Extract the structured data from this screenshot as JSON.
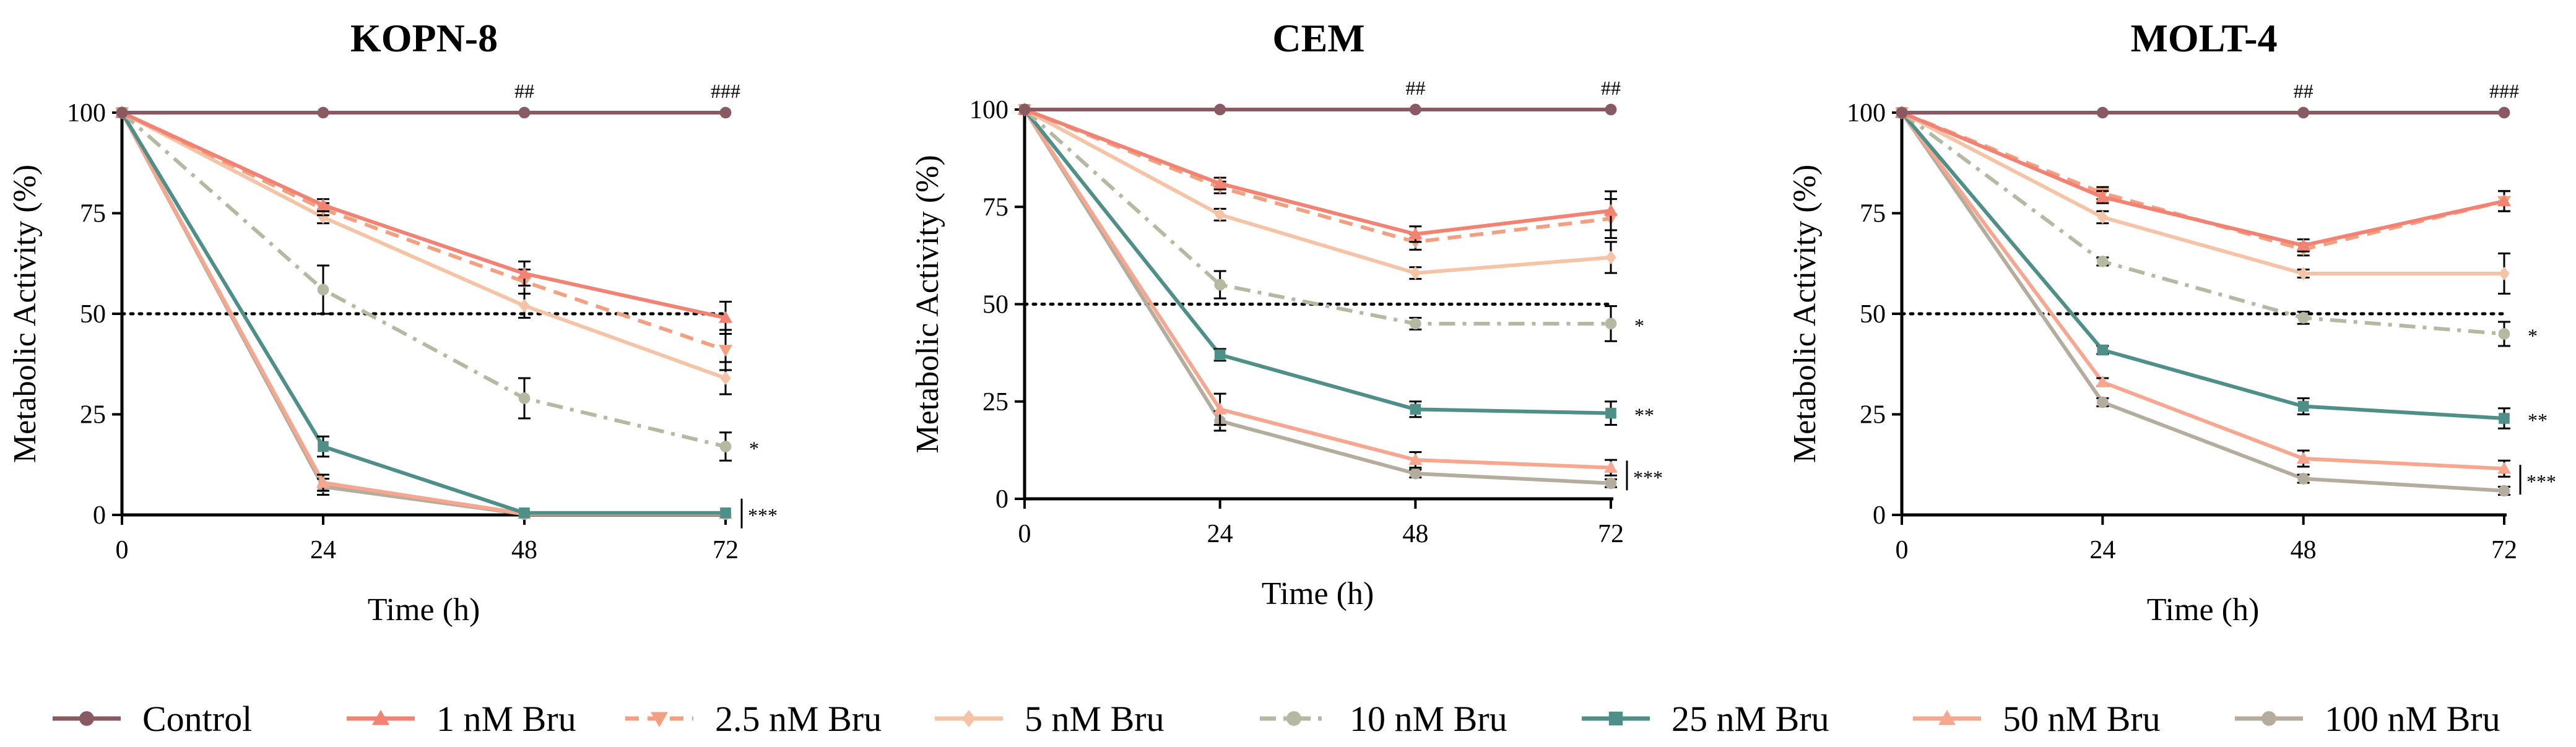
{
  "legend": [
    "Control",
    "1 nM Bru",
    "2.5 nM Bru",
    "5 nM Bru",
    "10 nM Bru",
    "25 nM Bru",
    "50 nM Bru",
    "100 nM Bru"
  ],
  "colors": {
    "control": "#8a5a63",
    "bru1": "#f28272",
    "bru2_5": "#f4a080",
    "bru5": "#f5c4a6",
    "bru10": "#b6b8a1",
    "bru25": "#4e8f87",
    "bru50": "#f7a68f",
    "bru100": "#b4ad9d"
  },
  "chart_data": [
    {
      "type": "line",
      "title": "KOPN-8",
      "xlabel": "Time (h)",
      "ylabel": "Metabolic Activity (%)",
      "x": [
        0,
        24,
        48,
        72
      ],
      "xticks": [
        "0",
        "24",
        "48",
        "72"
      ],
      "yticks": [
        "0",
        "25",
        "50",
        "75",
        "100"
      ],
      "ylim": [
        0,
        100
      ],
      "reference_line": 50,
      "series": [
        {
          "name": "Control",
          "values": [
            100,
            100,
            100,
            100
          ],
          "err": [
            0,
            0,
            0,
            0
          ]
        },
        {
          "name": "1 nM Bru",
          "values": [
            100,
            77,
            60,
            49
          ],
          "err": [
            0,
            1.5,
            3,
            4
          ]
        },
        {
          "name": "2.5 nM Bru",
          "values": [
            100,
            76,
            58,
            41
          ],
          "err": [
            0,
            1.5,
            3,
            5
          ]
        },
        {
          "name": "5 nM Bru",
          "values": [
            100,
            74,
            52,
            34
          ],
          "err": [
            0,
            1.5,
            3,
            4
          ]
        },
        {
          "name": "10 nM Bru",
          "values": [
            100,
            56,
            29,
            17
          ],
          "err": [
            0,
            6,
            5,
            3.5
          ]
        },
        {
          "name": "25 nM Bru",
          "values": [
            100,
            17,
            0.5,
            0.5
          ],
          "err": [
            0,
            2.5,
            0.5,
            0.5
          ]
        },
        {
          "name": "50 nM Bru",
          "values": [
            100,
            8,
            0.3,
            0.3
          ],
          "err": [
            0,
            2,
            0.3,
            0.3
          ]
        },
        {
          "name": "100 nM Bru",
          "values": [
            100,
            7,
            0.2,
            0.2
          ],
          "err": [
            0,
            2,
            0.2,
            0.2
          ]
        }
      ],
      "annotations": {
        "top": [
          {
            "x": 48,
            "text": "##"
          },
          {
            "x": 72,
            "text": "###"
          }
        ],
        "side": [
          {
            "text": "*",
            "series": [
              4
            ]
          },
          {
            "text": "***",
            "series": [
              5,
              6,
              7
            ]
          }
        ]
      }
    },
    {
      "type": "line",
      "title": "CEM",
      "xlabel": "Time (h)",
      "ylabel": "Metabolic Activity (%)",
      "x": [
        0,
        24,
        48,
        72
      ],
      "xticks": [
        "0",
        "24",
        "48",
        "72"
      ],
      "yticks": [
        "0",
        "25",
        "50",
        "75",
        "100"
      ],
      "ylim": [
        0,
        100
      ],
      "reference_line": 50,
      "series": [
        {
          "name": "Control",
          "values": [
            100,
            100,
            100,
            100
          ],
          "err": [
            0,
            0,
            0,
            0
          ]
        },
        {
          "name": "1 nM Bru",
          "values": [
            100,
            81,
            68,
            74
          ],
          "err": [
            0,
            1.5,
            2,
            5
          ]
        },
        {
          "name": "2.5 nM Bru",
          "values": [
            100,
            80,
            66,
            72
          ],
          "err": [
            0,
            1.5,
            2,
            5
          ]
        },
        {
          "name": "5 nM Bru",
          "values": [
            100,
            73,
            58,
            62
          ],
          "err": [
            0,
            1.5,
            1.5,
            4
          ]
        },
        {
          "name": "10 nM Bru",
          "values": [
            100,
            55,
            45,
            45
          ],
          "err": [
            0,
            3.5,
            1.5,
            4.5
          ]
        },
        {
          "name": "25 nM Bru",
          "values": [
            100,
            37,
            23,
            22
          ],
          "err": [
            0,
            1.5,
            2,
            3
          ]
        },
        {
          "name": "50 nM Bru",
          "values": [
            100,
            23,
            10,
            8
          ],
          "err": [
            0,
            4,
            2,
            2
          ]
        },
        {
          "name": "100 nM Bru",
          "values": [
            100,
            20,
            6.5,
            4
          ],
          "err": [
            0,
            2.5,
            1,
            1
          ]
        }
      ],
      "annotations": {
        "top": [
          {
            "x": 48,
            "text": "##"
          },
          {
            "x": 72,
            "text": "##"
          }
        ],
        "side": [
          {
            "text": "*",
            "series": [
              4
            ]
          },
          {
            "text": "**",
            "series": [
              5
            ]
          },
          {
            "text": "***",
            "series": [
              6,
              7
            ]
          }
        ]
      }
    },
    {
      "type": "line",
      "title": "MOLT-4",
      "xlabel": "Time (h)",
      "ylabel": "Metabolic Activity (%)",
      "x": [
        0,
        24,
        48,
        72
      ],
      "xticks": [
        "0",
        "24",
        "48",
        "72"
      ],
      "yticks": [
        "0",
        "25",
        "50",
        "75",
        "100"
      ],
      "ylim": [
        0,
        100
      ],
      "reference_line": 50,
      "series": [
        {
          "name": "Control",
          "values": [
            100,
            100,
            100,
            100
          ],
          "err": [
            0,
            0,
            0,
            0
          ]
        },
        {
          "name": "1 nM Bru",
          "values": [
            100,
            79,
            67,
            78
          ],
          "err": [
            0,
            1.5,
            1.5,
            2.5
          ]
        },
        {
          "name": "2.5 nM Bru",
          "values": [
            100,
            80,
            66,
            78
          ],
          "err": [
            0,
            1.5,
            1.5,
            2.5
          ]
        },
        {
          "name": "5 nM Bru",
          "values": [
            100,
            74,
            60,
            60
          ],
          "err": [
            0,
            1.5,
            1,
            5
          ]
        },
        {
          "name": "10 nM Bru",
          "values": [
            100,
            63,
            49,
            45
          ],
          "err": [
            0,
            1,
            1.5,
            3
          ]
        },
        {
          "name": "25 nM Bru",
          "values": [
            100,
            41,
            27,
            24
          ],
          "err": [
            0,
            1,
            2,
            2.5
          ]
        },
        {
          "name": "50 nM Bru",
          "values": [
            100,
            33,
            14,
            11.5
          ],
          "err": [
            0,
            1,
            2,
            2
          ]
        },
        {
          "name": "100 nM Bru",
          "values": [
            100,
            28,
            9,
            6
          ],
          "err": [
            0,
            1,
            1,
            1
          ]
        }
      ],
      "annotations": {
        "top": [
          {
            "x": 48,
            "text": "##"
          },
          {
            "x": 72,
            "text": "###"
          }
        ],
        "side": [
          {
            "text": "*",
            "series": [
              4
            ]
          },
          {
            "text": "**",
            "series": [
              5
            ]
          },
          {
            "text": "***",
            "series": [
              6,
              7
            ]
          }
        ]
      }
    }
  ]
}
